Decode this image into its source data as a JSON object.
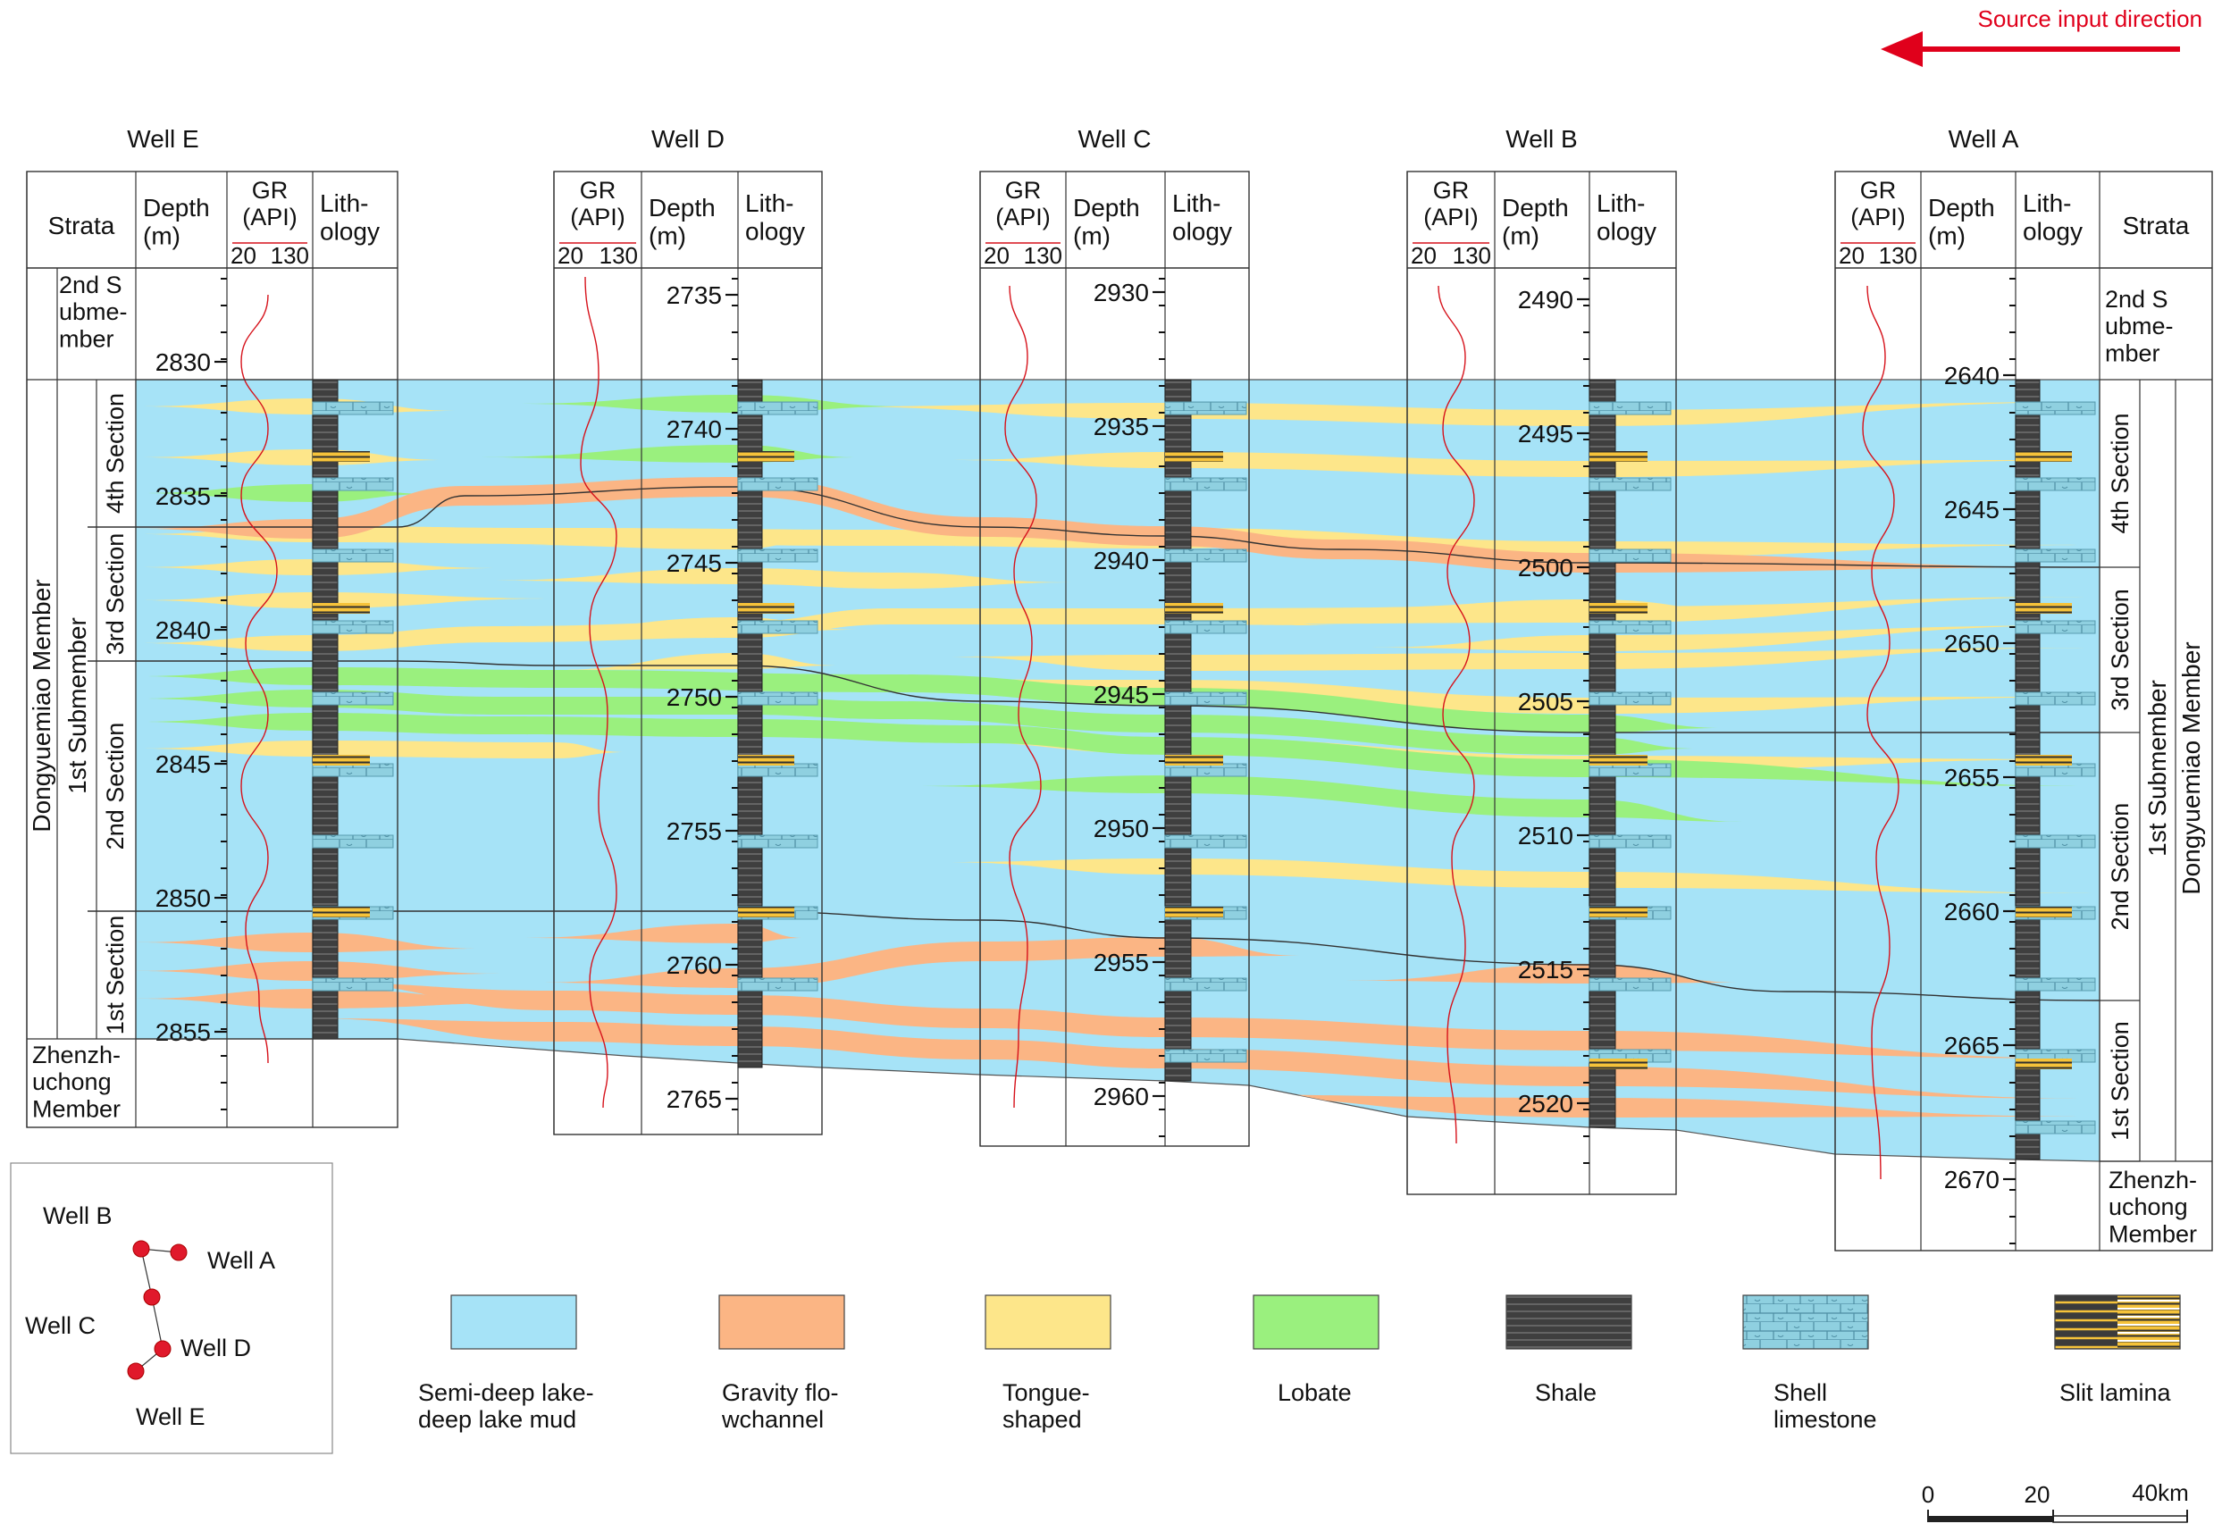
{
  "header": {
    "source_label": "Source input direction",
    "arrow_color": "#e0001b"
  },
  "colors": {
    "mud": "#a6e3f7",
    "channel": "#fbb584",
    "tongue": "#fde68a",
    "lobate": "#9af07e",
    "shale": "#4d4d4d",
    "shell": "#8fd0e0",
    "laminaDark": "#3b3b3b",
    "laminaLight": "#f6c33a",
    "gr": "#d6121b",
    "line": "#333333"
  },
  "wells": [
    {
      "name": "Well E",
      "headers": {
        "strata": "Strata",
        "depth": "Depth\n(m)",
        "gr": "GR\n(API)",
        "gr_min": "20",
        "gr_max": "130",
        "lith": "Lith-\nology"
      },
      "ticks": [
        "2830",
        "2835",
        "2840",
        "2845",
        "2850",
        "2855"
      ]
    },
    {
      "name": "Well D",
      "headers": {
        "gr": "GR\n(API)",
        "gr_min": "20",
        "gr_max": "130",
        "depth": "Depth\n(m)",
        "lith": "Lith-\nology"
      },
      "ticks": [
        "2735",
        "2740",
        "2745",
        "2750",
        "2755",
        "2760",
        "2765"
      ]
    },
    {
      "name": "Well C",
      "headers": {
        "gr": "GR\n(API)",
        "gr_min": "20",
        "gr_max": "130",
        "depth": "Depth\n(m)",
        "lith": "Lith-\nology"
      },
      "ticks": [
        "2930",
        "2935",
        "2940",
        "2945",
        "2950",
        "2955",
        "2960"
      ]
    },
    {
      "name": "Well B",
      "headers": {
        "gr": "GR\n(API)",
        "gr_min": "20",
        "gr_max": "130",
        "depth": "Depth\n(m)",
        "lith": "Lith-\nology"
      },
      "ticks": [
        "2490",
        "2495",
        "2500",
        "2505",
        "2510",
        "2515",
        "2520"
      ]
    },
    {
      "name": "Well A",
      "headers": {
        "gr": "GR\n(API)",
        "gr_min": "20",
        "gr_max": "130",
        "depth": "Depth\n(m)",
        "lith": "Lith-\nology",
        "strata": "Strata"
      },
      "ticks": [
        "2640",
        "2645",
        "2650",
        "2655",
        "2660",
        "2665",
        "2670"
      ]
    }
  ],
  "strata": {
    "member": "Dongyuemiao Member",
    "submember": "1st Submember",
    "second_sub": "2nd S\nubme-\nmber",
    "base": "Zhenzh-\nuchong\nMember",
    "sections": [
      "4th Section",
      "3rd Section",
      "2nd Section",
      "1st Section"
    ]
  },
  "inset": {
    "labels": [
      "Well B",
      "Well A",
      "Well C",
      "Well D",
      "Well E"
    ]
  },
  "legend": [
    {
      "key": "mud",
      "label": "Semi-deep lake-\ndeep lake mud"
    },
    {
      "key": "channel",
      "label": "Gravity flo-\nwchannel"
    },
    {
      "key": "tongue",
      "label": "Tongue-\nshaped"
    },
    {
      "key": "lobate",
      "label": "Lobate"
    },
    {
      "key": "shale",
      "label": "Shale"
    },
    {
      "key": "shell",
      "label": "Shell\nlimestone"
    },
    {
      "key": "lamina",
      "label": "Slit lamina"
    }
  ],
  "scale": {
    "labels": [
      "0",
      "20",
      "40km"
    ]
  }
}
